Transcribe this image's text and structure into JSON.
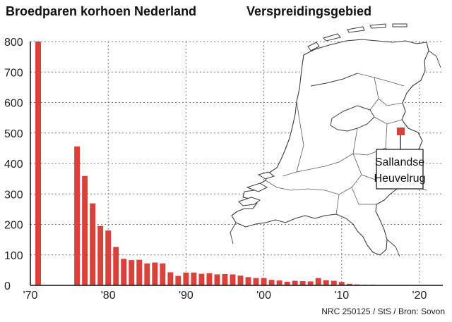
{
  "chart_data": {
    "type": "bar",
    "title": "Broedparen korhoen Nederland",
    "xlabel": "",
    "ylabel": "",
    "ylim": [
      0,
      800
    ],
    "xlim": [
      1970,
      2023
    ],
    "grid": true,
    "y_ticks": [
      0,
      100,
      200,
      300,
      400,
      500,
      600,
      700,
      800
    ],
    "x_ticks": [
      {
        "year": 1970,
        "label": "'70"
      },
      {
        "year": 1980,
        "label": "'80"
      },
      {
        "year": 1990,
        "label": "'90"
      },
      {
        "year": 2000,
        "label": "'00"
      },
      {
        "year": 2010,
        "label": "'10"
      },
      {
        "year": 2020,
        "label": "'20"
      }
    ],
    "color": "#d9413a",
    "x": [
      1971,
      1976,
      1977,
      1978,
      1979,
      1980,
      1981,
      1982,
      1983,
      1984,
      1985,
      1986,
      1987,
      1988,
      1989,
      1990,
      1991,
      1992,
      1993,
      1994,
      1995,
      1996,
      1997,
      1998,
      1999,
      2000,
      2001,
      2002,
      2003,
      2004,
      2005,
      2006,
      2007,
      2008,
      2009,
      2010,
      2011,
      2012,
      2013,
      2014,
      2015,
      2016,
      2017,
      2018,
      2019,
      2020,
      2021,
      2022
    ],
    "values": [
      800,
      456,
      359,
      269,
      195,
      180,
      126,
      87,
      83,
      84,
      72,
      75,
      72,
      43,
      31,
      42,
      42,
      38,
      40,
      36,
      37,
      36,
      32,
      27,
      24,
      24,
      18,
      16,
      12,
      15,
      14,
      13,
      24,
      17,
      15,
      11,
      5,
      3,
      2,
      2,
      1,
      1,
      1,
      1,
      0,
      0,
      0,
      0
    ]
  },
  "map": {
    "title": "Verspreidingsgebied",
    "callout_line1": "Sallandse",
    "callout_line2": "Heuvelrug",
    "marker_color": "#d9413a"
  },
  "credit": "NRC 250125 / StS / Bron: Sovon"
}
